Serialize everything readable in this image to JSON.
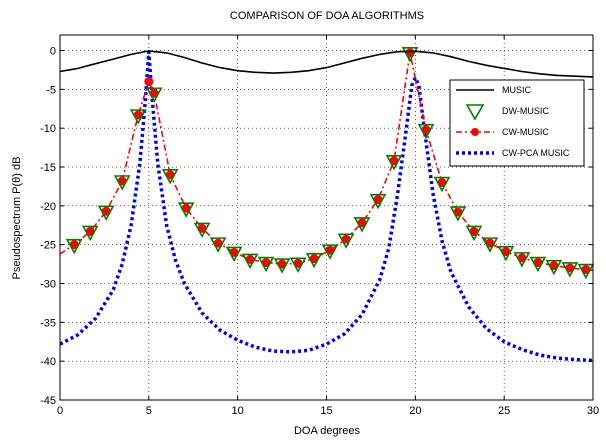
{
  "chart_data": {
    "type": "line",
    "title": "COMPARISON OF DOA ALGORITHMS",
    "xlabel": "DOA degrees",
    "ylabel": "Pseudospectrum P(θ) dB",
    "xlim": [
      0,
      30
    ],
    "ylim": [
      -45,
      2
    ],
    "xticks": [
      0,
      5,
      10,
      15,
      20,
      25,
      30
    ],
    "xtick_labels": [
      "0",
      "5",
      "10",
      "15",
      "20",
      "25",
      "30"
    ],
    "yticks": [
      0,
      -5,
      -10,
      -15,
      -20,
      -25,
      -30,
      -35,
      -40,
      -45
    ],
    "ytick_labels": [
      "0",
      "-5",
      "-10",
      "-15",
      "-20",
      "-25",
      "-30",
      "-35",
      "-40",
      "-45"
    ],
    "grid": true,
    "legend_position": "right",
    "series": [
      {
        "name": "MUSIC",
        "color": "#000000",
        "style": "solid",
        "marker": "none",
        "x": [
          0,
          1,
          2,
          3,
          4,
          5,
          6,
          7,
          8,
          9,
          10,
          11,
          12,
          13,
          14,
          15,
          16,
          17,
          18,
          19,
          20,
          21,
          22,
          23,
          24,
          25,
          26,
          27,
          28,
          29,
          30
        ],
        "y": [
          -2.7,
          -2.3,
          -1.7,
          -1.1,
          -0.5,
          -0.05,
          -0.3,
          -0.9,
          -1.6,
          -2.2,
          -2.6,
          -2.8,
          -2.9,
          -2.8,
          -2.6,
          -2.2,
          -1.6,
          -1.0,
          -0.5,
          -0.15,
          -0.1,
          -0.3,
          -0.8,
          -1.4,
          -1.9,
          -2.3,
          -2.7,
          -3.0,
          -3.2,
          -3.3,
          -3.4
        ]
      },
      {
        "name": "DW-MUSIC",
        "color": "#008000",
        "style": "none",
        "marker": "triangle-down",
        "x": [
          0.8,
          1.7,
          2.6,
          3.5,
          4.4,
          5.3,
          6.2,
          7.1,
          8.0,
          8.9,
          9.8,
          10.7,
          11.6,
          12.5,
          13.4,
          14.3,
          15.2,
          16.1,
          17.0,
          17.9,
          18.8,
          19.7,
          20.6,
          21.5,
          22.4,
          23.3,
          24.2,
          25.1,
          26.0,
          26.9,
          27.8,
          28.7,
          29.6
        ],
        "y": [
          -25.0,
          -23.3,
          -20.7,
          -16.8,
          -8.3,
          -5.5,
          -16.0,
          -20.3,
          -22.9,
          -24.8,
          -26.0,
          -26.9,
          -27.3,
          -27.5,
          -27.4,
          -26.8,
          -25.7,
          -24.3,
          -22.2,
          -19.2,
          -14.2,
          -0.3,
          -10.2,
          -17.0,
          -20.8,
          -23.3,
          -24.8,
          -25.9,
          -26.7,
          -27.3,
          -27.7,
          -28.0,
          -28.2
        ]
      },
      {
        "name": "CW-MUSIC",
        "color": "#ff0000",
        "style": "dashdot",
        "marker": "circle",
        "x": [
          0,
          0.8,
          1.7,
          2.6,
          3.5,
          4.4,
          5.0,
          5.3,
          6.2,
          7.1,
          8.0,
          8.9,
          9.8,
          10.7,
          11.6,
          12.5,
          13.4,
          14.3,
          15.2,
          16.1,
          17.0,
          17.9,
          18.8,
          19.7,
          20.6,
          21.5,
          22.4,
          23.3,
          24.2,
          25.1,
          26.0,
          26.9,
          27.8,
          28.7,
          29.6,
          30
        ],
        "y": [
          -26.2,
          -25.0,
          -23.3,
          -20.7,
          -16.8,
          -8.3,
          -4.0,
          -5.5,
          -16.0,
          -20.3,
          -22.9,
          -24.8,
          -26.0,
          -26.9,
          -27.3,
          -27.5,
          -27.4,
          -26.8,
          -25.7,
          -24.3,
          -22.2,
          -19.2,
          -14.2,
          -0.3,
          -10.2,
          -17.0,
          -20.8,
          -23.3,
          -24.8,
          -25.9,
          -26.7,
          -27.3,
          -27.7,
          -28.0,
          -28.2,
          -28.3
        ]
      },
      {
        "name": "CW-PCA MUSIC",
        "color": "#0000ff",
        "style": "dotted",
        "marker": "none",
        "x": [
          0,
          1,
          2,
          3,
          3.5,
          4,
          4.5,
          4.8,
          5.0,
          5.2,
          5.5,
          6,
          6.5,
          7,
          8,
          9,
          10,
          11,
          12,
          13,
          14,
          15,
          16,
          17,
          18,
          18.5,
          19,
          19.5,
          19.8,
          20.0,
          20.2,
          20.5,
          21,
          21.5,
          22,
          23,
          24,
          25,
          26,
          27,
          28,
          29,
          30
        ],
        "y": [
          -37.8,
          -36.6,
          -34.5,
          -30.8,
          -27.5,
          -22.5,
          -14.5,
          -6.5,
          -0.2,
          -6.5,
          -14.5,
          -22.5,
          -27.0,
          -30.0,
          -33.8,
          -36.0,
          -37.3,
          -38.2,
          -38.7,
          -38.8,
          -38.6,
          -37.8,
          -36.5,
          -34.0,
          -29.5,
          -25.5,
          -18.5,
          -10.0,
          -4.5,
          -3.5,
          -4.5,
          -10.0,
          -18.5,
          -24.5,
          -28.5,
          -33.0,
          -35.8,
          -37.5,
          -38.5,
          -39.2,
          -39.6,
          -39.8,
          -39.9
        ]
      }
    ]
  }
}
